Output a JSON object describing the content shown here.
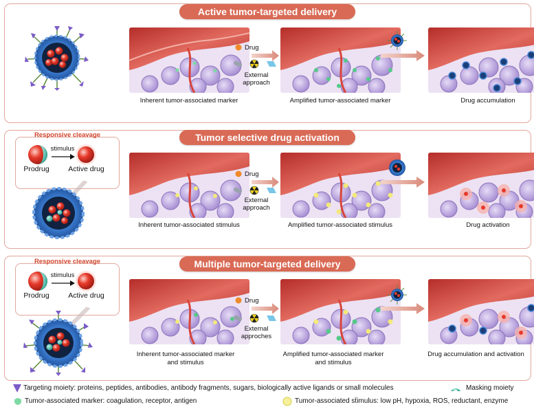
{
  "panels": [
    {
      "title": "Active tumor-targeted delivery",
      "drug_label": "Drug",
      "external_label": "External approach",
      "captions": [
        "Inherent tumor-associated marker",
        "Amplified tumor-associated marker",
        "Drug accumulation"
      ]
    },
    {
      "title": "Tumor selective drug activation",
      "drug_label": "Drug",
      "external_label": "External approach",
      "captions": [
        "Inherent tumor-associated stimulus",
        "Amplified tumor-associated stimulus",
        "Drug activation"
      ],
      "cleavage": {
        "title": "Responsive cleavage",
        "prodrug": "Prodrug",
        "stimulus": "stimulus",
        "active": "Active drug"
      }
    },
    {
      "title": "Multiple tumor-targeted delivery",
      "drug_label": "Drug",
      "external_label": "External approches",
      "captions": [
        "Inherent tumor-associated marker and stimulus",
        "Amplified tumor-associated marker and stimulus",
        "Drug accumulation and activation"
      ],
      "cleavage": {
        "title": "Responsive cleavage",
        "prodrug": "Prodrug",
        "stimulus": "stimulus",
        "active": "Active drug"
      }
    }
  ],
  "legend": {
    "targeting": "Targeting moiety: proteins, peptides, antibodies, antibody fragments, sugars, biologically active ligands or small molecules",
    "masking": "Masking moiety",
    "marker": "Tumor-associated marker: coagulation, receptor, antigen",
    "stimulus": "Tumor-associated sẗimulus: low pH, hypoxia, ROS, reductant, enzyme"
  },
  "colors": {
    "accent": "#d96a55",
    "border": "#e0a79c",
    "nanoparticle": "#2f6fc0",
    "drug": "#e03a2a",
    "vessel": "#c9413a",
    "cells": "#b9a4dc"
  }
}
